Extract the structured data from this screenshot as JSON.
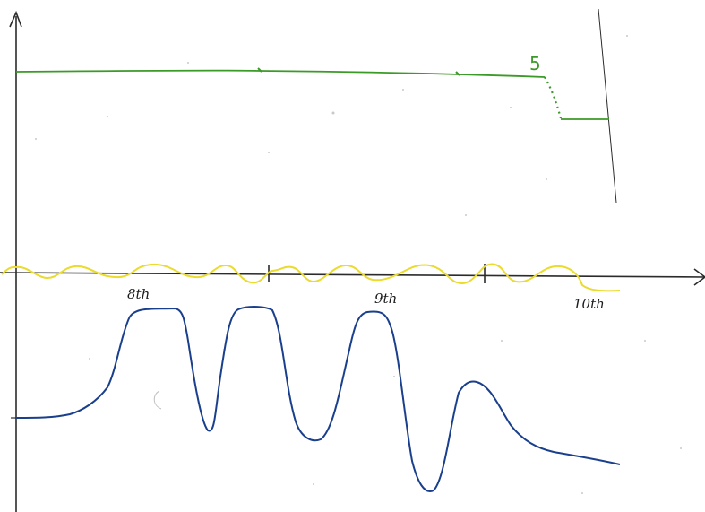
{
  "chart_data": {
    "type": "line",
    "title": "",
    "xlabel": "",
    "ylabel": "",
    "x_tick_labels": [
      "8th",
      "9th",
      "10th"
    ],
    "annotation": "5",
    "series": [
      {
        "color": "#3c9a28",
        "style": "solid, dotted drop near the end",
        "points": [
          [
            0.0,
            1.0
          ],
          [
            0.15,
            1.0
          ],
          [
            0.35,
            0.995
          ],
          [
            0.5,
            0.99
          ],
          [
            0.62,
            0.985
          ],
          [
            0.66,
            0.96
          ],
          [
            0.675,
            0.9
          ],
          [
            0.68,
            0.87
          ],
          [
            0.73,
            0.87
          ]
        ]
      },
      {
        "color": "#eadb2c",
        "style": "oscillation around the axis",
        "points": [
          [
            0.0,
            0.5
          ],
          [
            0.6,
            0.5
          ],
          [
            0.7,
            0.5
          ]
        ]
      },
      {
        "color": "#1a3f8c",
        "style": "smooth curve below the axis",
        "points": [
          [
            0.0,
            0.0
          ],
          [
            0.08,
            0.05
          ],
          [
            0.12,
            0.35
          ],
          [
            0.16,
            0.9
          ],
          [
            0.21,
            0.9
          ],
          [
            0.24,
            0.0
          ],
          [
            0.27,
            0.9
          ],
          [
            0.32,
            0.9
          ],
          [
            0.36,
            0.05
          ],
          [
            0.41,
            0.9
          ],
          [
            0.44,
            0.9
          ],
          [
            0.48,
            -0.4
          ],
          [
            0.52,
            -0.4
          ],
          [
            0.55,
            0.4
          ],
          [
            0.58,
            0.35
          ],
          [
            0.62,
            0.05
          ],
          [
            0.7,
            -0.02
          ]
        ]
      }
    ],
    "ylim": [
      -0.5,
      1.1
    ],
    "grid": false
  },
  "colors": {
    "axis": "#2b2b2b",
    "green": "#3c9a28",
    "yellow": "#eadb2c",
    "blue": "#1a3f8c"
  }
}
